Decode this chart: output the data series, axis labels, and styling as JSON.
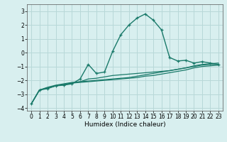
{
  "xlabel": "Humidex (Indice chaleur)",
  "bg_color": "#d8efef",
  "grid_color": "#b8d8d8",
  "line_color": "#1a7a6a",
  "xlim": [
    -0.5,
    23.5
  ],
  "ylim": [
    -4.2,
    3.5
  ],
  "xticks": [
    0,
    1,
    2,
    3,
    4,
    5,
    6,
    7,
    8,
    9,
    10,
    11,
    12,
    13,
    14,
    15,
    16,
    17,
    18,
    19,
    20,
    21,
    22,
    23
  ],
  "yticks": [
    -4,
    -3,
    -2,
    -1,
    0,
    1,
    2,
    3
  ],
  "curve1_x": [
    0,
    1,
    2,
    3,
    4,
    5,
    6,
    7,
    8,
    9,
    10,
    11,
    12,
    13,
    14,
    15,
    16,
    17,
    18,
    19,
    20,
    21,
    22,
    23
  ],
  "curve1_y": [
    -3.7,
    -2.7,
    -2.55,
    -2.4,
    -2.3,
    -2.2,
    -2.1,
    -1.9,
    -1.85,
    -1.75,
    -1.65,
    -1.6,
    -1.55,
    -1.5,
    -1.45,
    -1.4,
    -1.35,
    -1.3,
    -1.2,
    -1.1,
    -1.0,
    -0.9,
    -0.85,
    -0.85
  ],
  "curve2_x": [
    0,
    1,
    2,
    3,
    4,
    5,
    6,
    7,
    8,
    9,
    10,
    11,
    12,
    13,
    14,
    15,
    16,
    17,
    18,
    19,
    20,
    21,
    22,
    23
  ],
  "curve2_y": [
    -3.7,
    -2.7,
    -2.5,
    -2.35,
    -2.25,
    -2.15,
    -2.1,
    -2.05,
    -2.0,
    -1.95,
    -1.9,
    -1.85,
    -1.8,
    -1.7,
    -1.6,
    -1.5,
    -1.4,
    -1.3,
    -1.2,
    -1.1,
    -0.95,
    -0.85,
    -0.8,
    -0.75
  ],
  "curve3_x": [
    0,
    1,
    2,
    3,
    4,
    5,
    6,
    7,
    8,
    9,
    10,
    11,
    12,
    13,
    14,
    15,
    16,
    17,
    18,
    19,
    20,
    21,
    22,
    23
  ],
  "curve3_y": [
    -3.7,
    -2.7,
    -2.55,
    -2.4,
    -2.3,
    -2.2,
    -2.15,
    -2.1,
    -2.05,
    -2.0,
    -1.95,
    -1.9,
    -1.85,
    -1.8,
    -1.7,
    -1.65,
    -1.55,
    -1.45,
    -1.35,
    -1.25,
    -1.1,
    -1.0,
    -0.95,
    -0.9
  ],
  "curve4_x": [
    0,
    1,
    2,
    3,
    4,
    5,
    6,
    7,
    8,
    9,
    10,
    11,
    12,
    13,
    14,
    15,
    16,
    17,
    18,
    19,
    20,
    21,
    22,
    23
  ],
  "curve4_y": [
    -3.7,
    -2.7,
    -2.6,
    -2.4,
    -2.35,
    -2.25,
    -1.9,
    -0.85,
    -1.5,
    -1.4,
    0.1,
    1.3,
    2.0,
    2.5,
    2.8,
    2.35,
    1.65,
    -0.35,
    -0.6,
    -0.55,
    -0.75,
    -0.65,
    -0.75,
    -0.85
  ]
}
